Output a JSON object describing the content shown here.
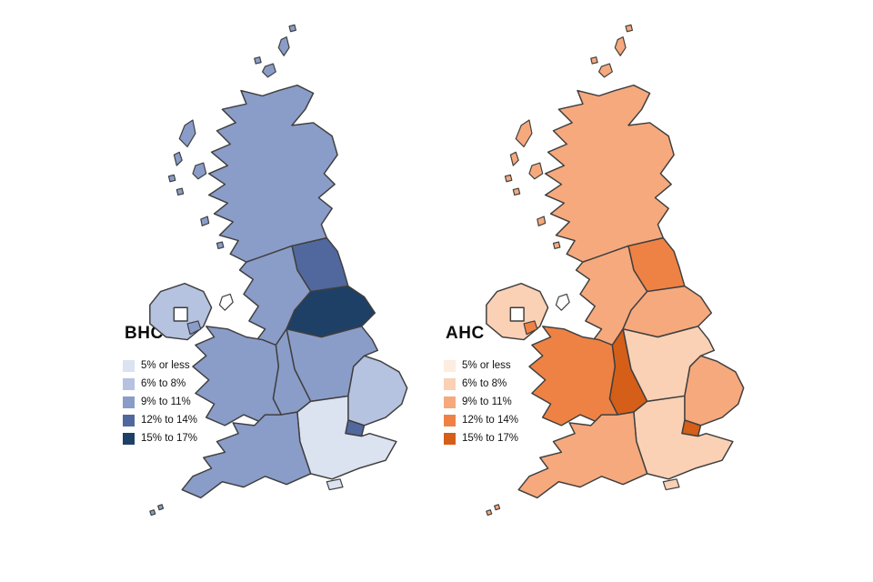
{
  "page": {
    "background": "#ffffff"
  },
  "legend_labels": [
    "5% or less",
    "6% to 8%",
    "9% to 11%",
    "12% to 14%",
    "15% to 17%"
  ],
  "maps": [
    {
      "id": "bhc",
      "title": "BHC",
      "palette": [
        "#dbe2f0",
        "#b5c2e0",
        "#8a9cc8",
        "#51689e",
        "#1e4066"
      ],
      "legend": [
        "5% or less",
        "6% to 8%",
        "9% to 11%",
        "12% to 14%",
        "15% to 17%"
      ],
      "regions": {
        "scotland": 2,
        "northern-ireland": 1,
        "north-east": 3,
        "north-west": 2,
        "yorkshire-and-the-humber": 4,
        "east-midlands": 2,
        "west-midlands": 2,
        "wales": 2,
        "east-of-england": 1,
        "london": 3,
        "south-east": 0,
        "south-west": 2
      }
    },
    {
      "id": "ahc",
      "title": "AHC",
      "palette": [
        "#fdece0",
        "#fad1b5",
        "#f6a97d",
        "#ee8245",
        "#d55e18"
      ],
      "legend": [
        "5% or less",
        "6% to 8%",
        "9% to 11%",
        "12% to 14%",
        "15% to 17%"
      ],
      "regions": {
        "scotland": 2,
        "northern-ireland": 1,
        "north-east": 3,
        "north-west": 2,
        "yorkshire-and-the-humber": 2,
        "east-midlands": 1,
        "west-midlands": 4,
        "wales": 3,
        "east-of-england": 2,
        "london": 4,
        "south-east": 1,
        "south-west": 2
      }
    }
  ],
  "chart_data": {
    "type": "choropleth",
    "geography": "United Kingdom countries and English regions",
    "bins": [
      "5% or less",
      "6% to 8%",
      "9% to 11%",
      "12% to 14%",
      "15% to 17%"
    ],
    "legend_position": "left of each map",
    "series": [
      {
        "name": "BHC",
        "color_scale": "blues",
        "values": {
          "Scotland": "9% to 11%",
          "Northern Ireland": "6% to 8%",
          "North East": "12% to 14%",
          "North West": "9% to 11%",
          "Yorkshire and The Humber": "15% to 17%",
          "East Midlands": "9% to 11%",
          "West Midlands": "9% to 11%",
          "Wales": "9% to 11%",
          "East of England": "6% to 8%",
          "London": "12% to 14%",
          "South East": "5% or less",
          "South West": "9% to 11%"
        }
      },
      {
        "name": "AHC",
        "color_scale": "oranges",
        "values": {
          "Scotland": "9% to 11%",
          "Northern Ireland": "6% to 8%",
          "North East": "12% to 14%",
          "North West": "9% to 11%",
          "Yorkshire and The Humber": "9% to 11%",
          "East Midlands": "6% to 8%",
          "West Midlands": "15% to 17%",
          "Wales": "12% to 14%",
          "East of England": "9% to 11%",
          "London": "15% to 17%",
          "South East": "6% to 8%",
          "South West": "9% to 11%"
        }
      }
    ]
  }
}
